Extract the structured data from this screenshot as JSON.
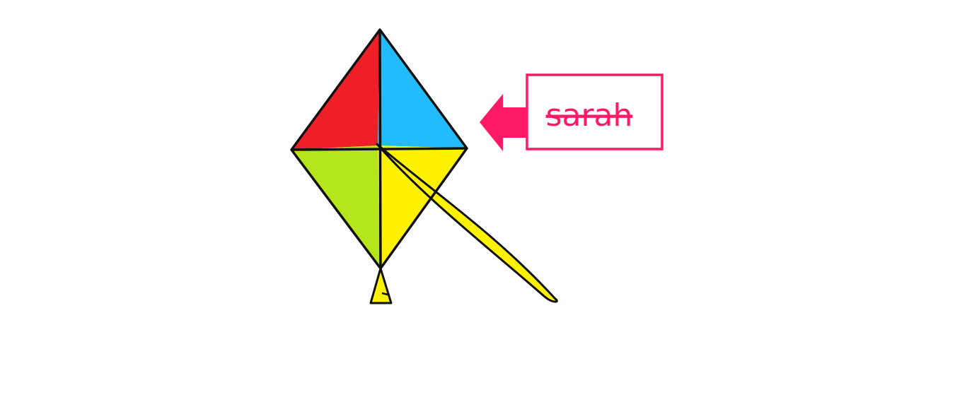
{
  "drawing": {
    "label": {
      "text": "sarah",
      "color": "#ff1a66",
      "strikethrough": true
    },
    "arrow": {
      "color": "#ff1a66",
      "direction": "left"
    },
    "kite": {
      "outline_color": "#111111",
      "quadrant_colors": {
        "top_left": "#ee1f26",
        "top_right": "#22bcfd",
        "bottom_left": "#b5e61d",
        "bottom_right": "#fff200"
      },
      "tail_color": "#fff200",
      "tassel_color": "#fff200"
    }
  }
}
